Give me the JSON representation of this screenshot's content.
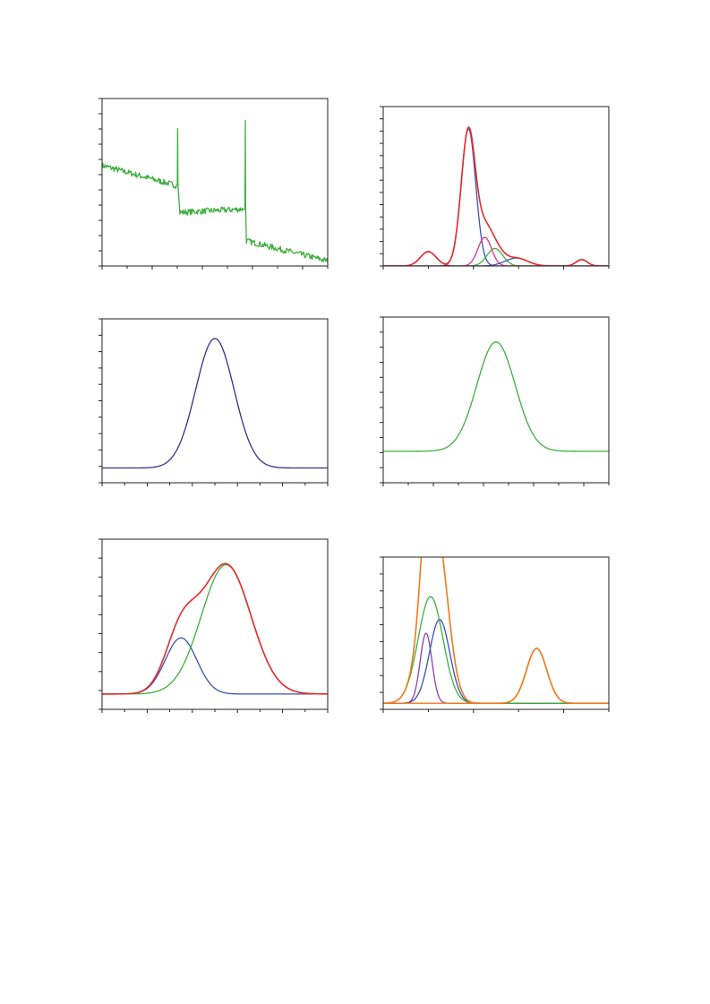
{
  "colors": {
    "background": "#ffffff",
    "axis": "#222222",
    "green": "#3fae3f",
    "red": "#e52b2b",
    "blue": "#3a52b5",
    "purple": "#8b3fb0",
    "magenta": "#e0308a",
    "orange": "#f07a1e",
    "indigo": "#3b2e8c"
  },
  "chart_data": [
    {
      "id": "a",
      "type": "line",
      "grid": false,
      "xlim": [
        0,
        100
      ],
      "ylim": [
        0,
        100
      ],
      "x_minor_ticks": 9,
      "y_minor_ticks": 11,
      "series": [
        {
          "color": "green",
          "kind": "segments",
          "noise": 1.8,
          "segments": [
            {
              "x": [
                0,
                33
              ],
              "y": [
                60,
                48
              ]
            },
            {
              "x": [
                34.5,
                62.5
              ],
              "y": [
                32,
                34
              ]
            },
            {
              "x": [
                64,
                100
              ],
              "y": [
                15,
                3
              ]
            }
          ],
          "spikes": [
            {
              "x": 33.5,
              "y": 82
            },
            {
              "x": 63.5,
              "y": 87
            }
          ]
        }
      ]
    },
    {
      "id": "b",
      "type": "line",
      "grid": false,
      "xlim": [
        0,
        100
      ],
      "ylim": [
        0,
        100
      ],
      "x_minor_ticks": 5,
      "y_minor_ticks": 13,
      "series": [
        {
          "color": "red",
          "kind": "sum"
        },
        {
          "color": "blue",
          "peaks": [
            {
              "c": 37.8,
              "a": 86,
              "w": 3.2
            }
          ]
        },
        {
          "color": "magenta",
          "peaks": [
            {
              "c": 45,
              "a": 18,
              "w": 3.0
            }
          ]
        },
        {
          "color": "green",
          "peaks": [
            {
              "c": 49.5,
              "a": 11,
              "w": 3.5
            }
          ]
        },
        {
          "color": "blue",
          "peaks": [
            {
              "c": 59,
              "a": 5,
              "w": 5
            }
          ]
        },
        {
          "color": "red",
          "peaks": [
            {
              "c": 20,
              "a": 9,
              "w": 3.5
            },
            {
              "c": 88,
              "a": 4,
              "w": 2.5
            }
          ]
        }
      ]
    },
    {
      "id": "c",
      "type": "line",
      "grid": false,
      "xlim": [
        0,
        100
      ],
      "ylim": [
        0,
        100
      ],
      "x_minor_ticks": 10,
      "y_minor_ticks": 10,
      "baseline": 9,
      "series": [
        {
          "color": "indigo",
          "peaks": [
            {
              "c": 50,
              "a": 79,
              "w": 8.5
            }
          ]
        }
      ]
    },
    {
      "id": "d",
      "type": "line",
      "grid": false,
      "xlim": [
        0,
        100
      ],
      "ylim": [
        0,
        100
      ],
      "x_minor_ticks": 9,
      "y_minor_ticks": 11,
      "baseline": 19,
      "series": [
        {
          "color": "green",
          "peaks": [
            {
              "c": 50,
              "a": 66,
              "w": 8.5
            }
          ]
        }
      ]
    },
    {
      "id": "e",
      "type": "line",
      "grid": false,
      "xlim": [
        0,
        100
      ],
      "ylim": [
        0,
        100
      ],
      "x_minor_ticks": 10,
      "y_minor_ticks": 9,
      "baseline": 9,
      "series": [
        {
          "color": "red",
          "kind": "sum"
        },
        {
          "color": "blue",
          "peaks": [
            {
              "c": 35,
              "a": 33,
              "w": 7
            }
          ]
        },
        {
          "color": "green",
          "peaks": [
            {
              "c": 55,
              "a": 76,
              "w": 11
            }
          ]
        }
      ]
    },
    {
      "id": "f",
      "type": "line",
      "grid": false,
      "xlim": [
        0,
        100
      ],
      "ylim": [
        0,
        100
      ],
      "x_minor_ticks": 5,
      "y_minor_ticks": 9,
      "baseline": 4,
      "series": [
        {
          "color": "orange",
          "kind": "sum"
        },
        {
          "color": "purple",
          "peaks": [
            {
              "c": 19,
              "a": 46,
              "w": 2.6
            }
          ]
        },
        {
          "color": "blue",
          "peaks": [
            {
              "c": 25,
              "a": 55,
              "w": 4.5
            }
          ]
        },
        {
          "color": "green",
          "peaks": [
            {
              "c": 21,
              "a": 70,
              "w": 5.5
            }
          ]
        },
        {
          "color": "orange",
          "peaks": [
            {
              "c": 68,
              "a": 36,
              "w": 4.5
            }
          ]
        }
      ]
    }
  ]
}
